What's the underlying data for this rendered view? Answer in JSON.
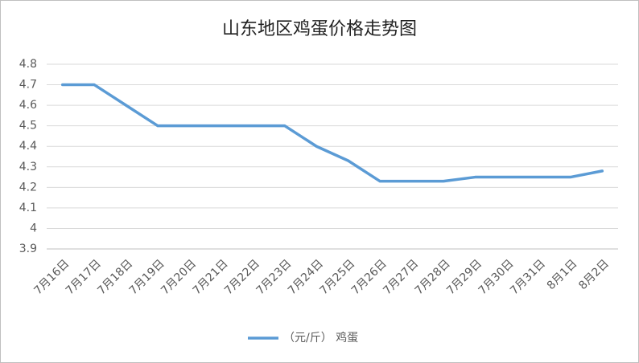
{
  "chart_data": {
    "type": "line",
    "title": "山东地区鸡蛋价格走势图",
    "categories": [
      "7月16日",
      "7月17日",
      "7月18日",
      "7月19日",
      "7月20日",
      "7月21日",
      "7月22日",
      "7月23日",
      "7月24日",
      "7月25日",
      "7月26日",
      "7月27日",
      "7月28日",
      "7月29日",
      "7月30日",
      "7月31日",
      "8月1日",
      "8月2日"
    ],
    "series": [
      {
        "name": "（元/斤） 鸡蛋",
        "color": "#5b9bd5",
        "values": [
          4.7,
          4.7,
          4.6,
          4.5,
          4.5,
          4.5,
          4.5,
          4.5,
          4.4,
          4.33,
          4.23,
          4.23,
          4.23,
          4.25,
          4.25,
          4.25,
          4.25,
          4.28
        ]
      }
    ],
    "ylim": [
      3.9,
      4.8
    ],
    "yticks": [
      3.9,
      4,
      4.1,
      4.2,
      4.3,
      4.4,
      4.5,
      4.6,
      4.7,
      4.8
    ],
    "grid": true,
    "legend": "bottom"
  }
}
